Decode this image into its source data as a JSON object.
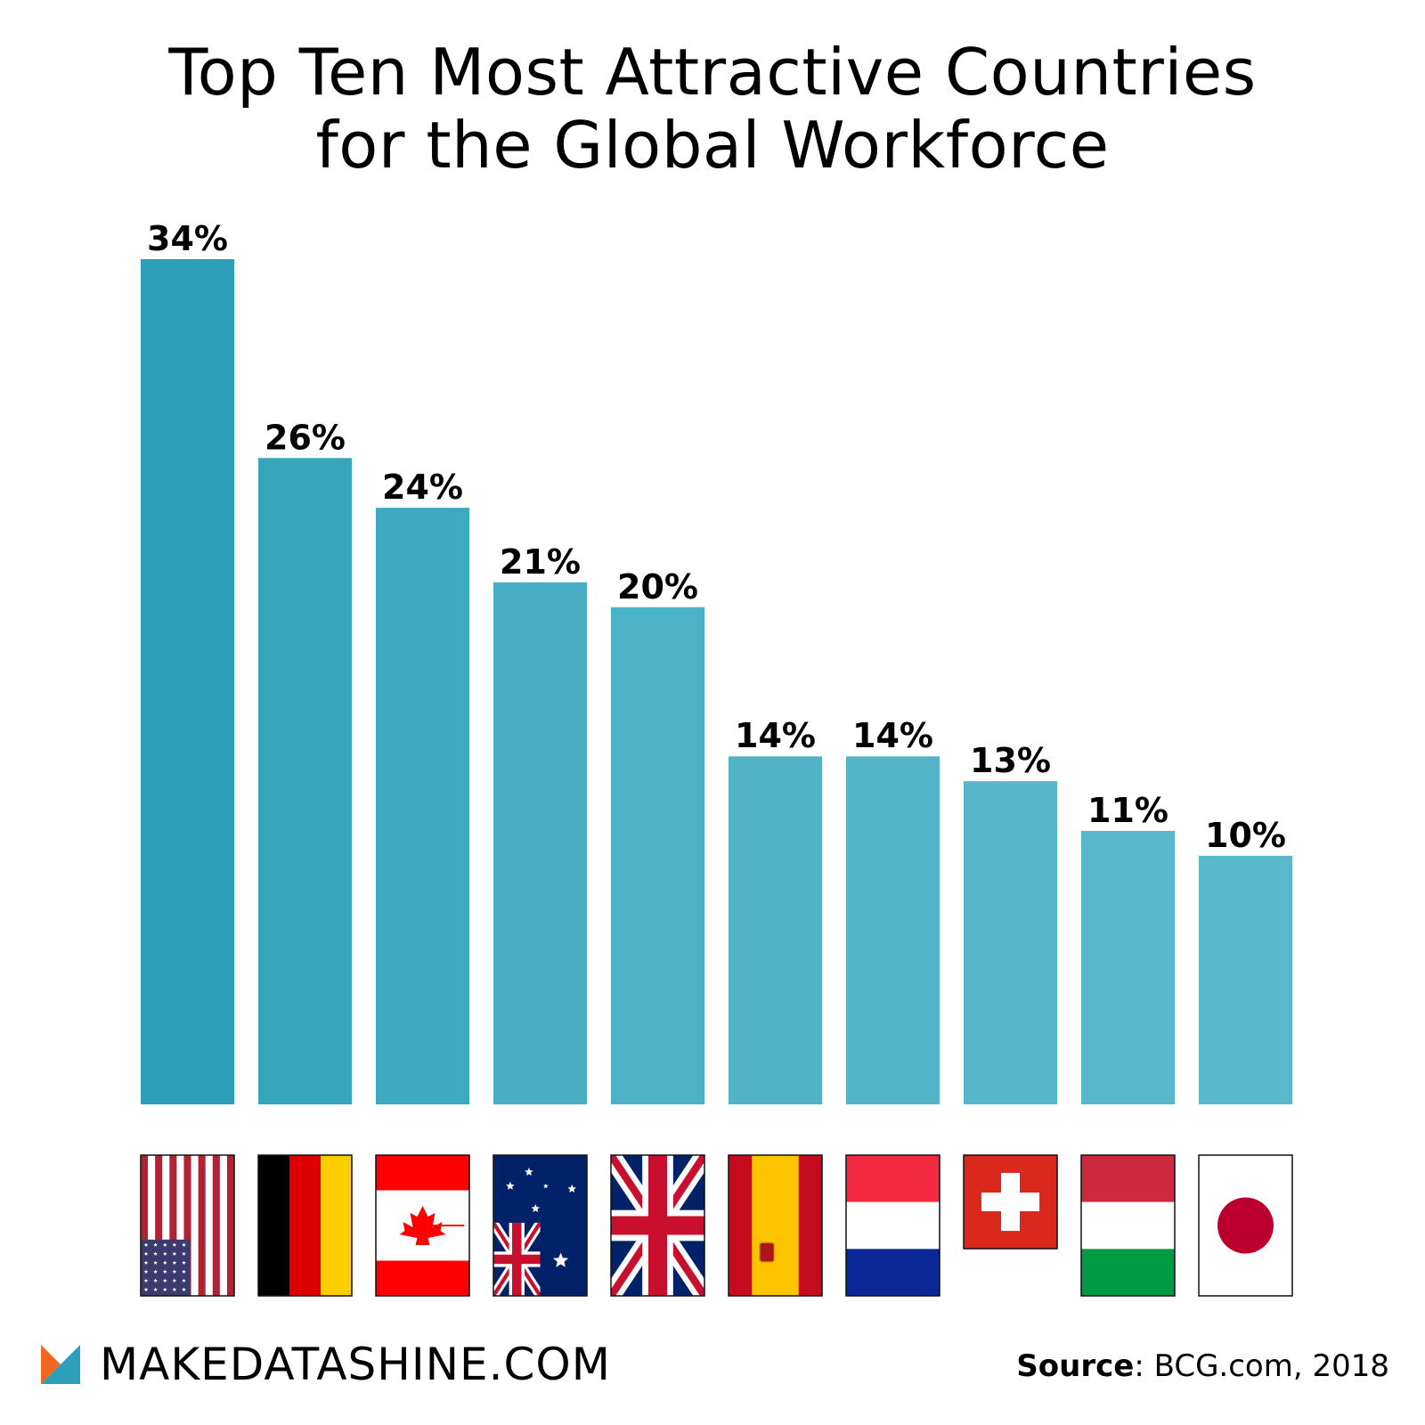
{
  "title_lines": [
    "Top Ten Most Attractive Countries",
    "for the Global Workforce"
  ],
  "chart_data": {
    "type": "bar",
    "title": "Top Ten Most Attractive Countries for the Global Workforce",
    "categories": [
      "USA",
      "Germany",
      "Canada",
      "Australia",
      "UK",
      "Spain",
      "Netherlands",
      "Switzerland",
      "Hungary",
      "Japan"
    ],
    "flags": [
      "us-flag-icon",
      "germany-flag-icon",
      "canada-flag-icon",
      "australia-flag-icon",
      "uk-flag-icon",
      "spain-flag-icon",
      "netherlands-flag-icon",
      "switzerland-flag-icon",
      "hungary-flag-icon",
      "japan-flag-icon"
    ],
    "values": [
      34,
      26,
      24,
      21,
      20,
      14,
      14,
      13,
      11,
      10
    ],
    "labels": [
      "34%",
      "26%",
      "24%",
      "21%",
      "20%",
      "14%",
      "14%",
      "13%",
      "11%",
      "10%"
    ],
    "unit": "%",
    "ylim": [
      0,
      34
    ],
    "grid": false,
    "legend": "none",
    "bar_colors": [
      "#2ba0b8",
      "#35a6bc",
      "#3eaac0",
      "#47aec3",
      "#4eb2c6",
      "#52b3c7",
      "#55b5c8",
      "#57b6c9",
      "#58b7ca",
      "#59b8cb"
    ]
  },
  "brand": {
    "name": "MAKEDATASHINE.COM",
    "logo_colors": [
      "#f26522",
      "#2ba0b8"
    ]
  },
  "source": {
    "label": "Source",
    "text": ": BCG.com, 2018"
  }
}
